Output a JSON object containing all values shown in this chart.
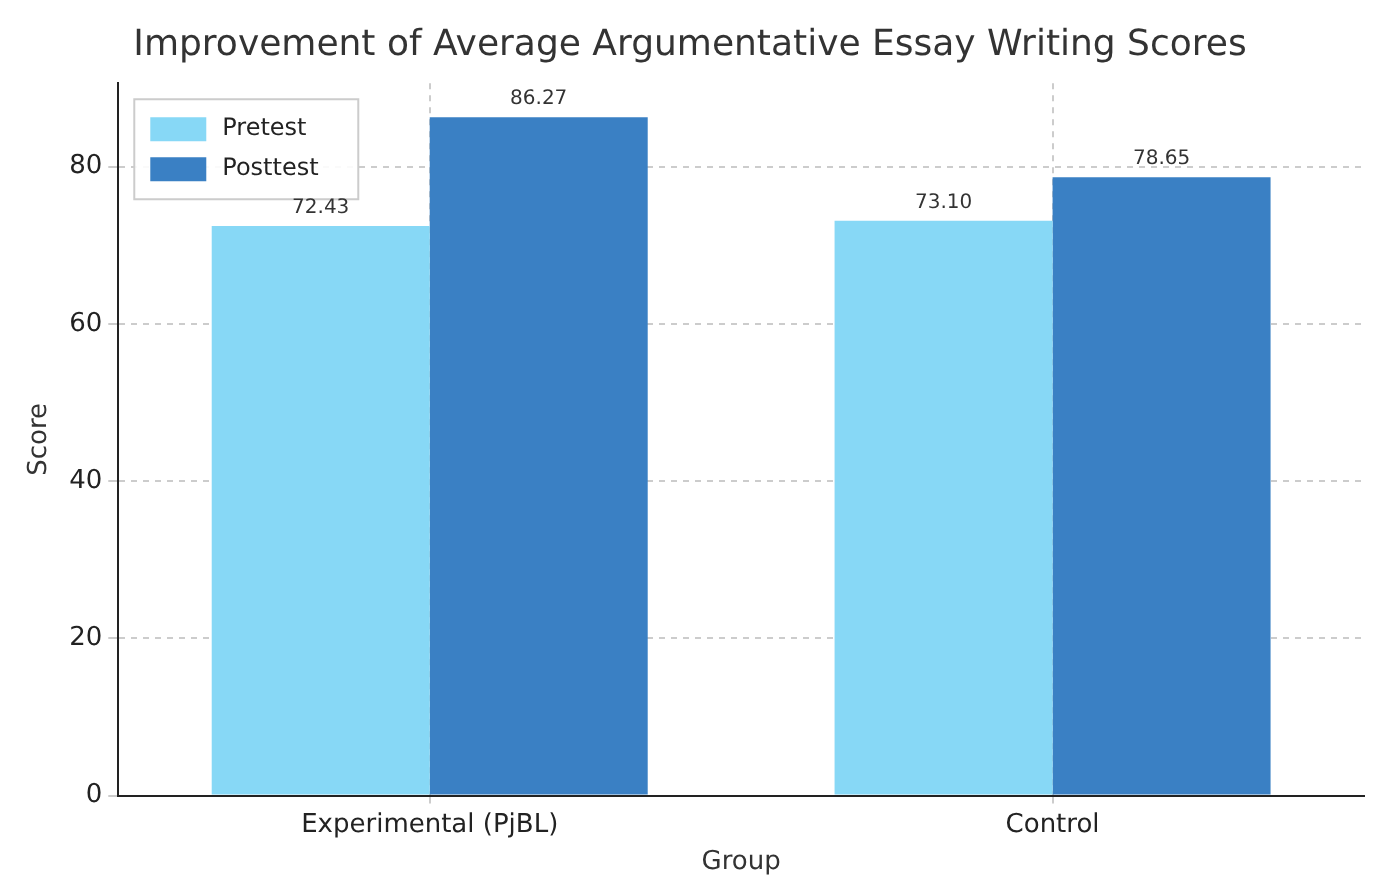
{
  "chart_data": {
    "type": "bar",
    "title": "Improvement of Average Argumentative Essay Writing Scores",
    "xlabel": "Group",
    "ylabel": "Score",
    "categories": [
      "Experimental (PjBL)",
      "Control"
    ],
    "series": [
      {
        "name": "Pretest",
        "color": "#87d8f6",
        "values": [
          72.43,
          73.1
        ],
        "value_labels": [
          "72.43",
          "73.10"
        ]
      },
      {
        "name": "Posttest",
        "color": "#3a80c4",
        "values": [
          86.27,
          78.65
        ],
        "value_labels": [
          "86.27",
          "78.65"
        ]
      }
    ],
    "ylim": [
      0,
      90.6
    ],
    "yticks": [
      0,
      20,
      40,
      60,
      80
    ],
    "grid": true,
    "legend": "top left"
  }
}
